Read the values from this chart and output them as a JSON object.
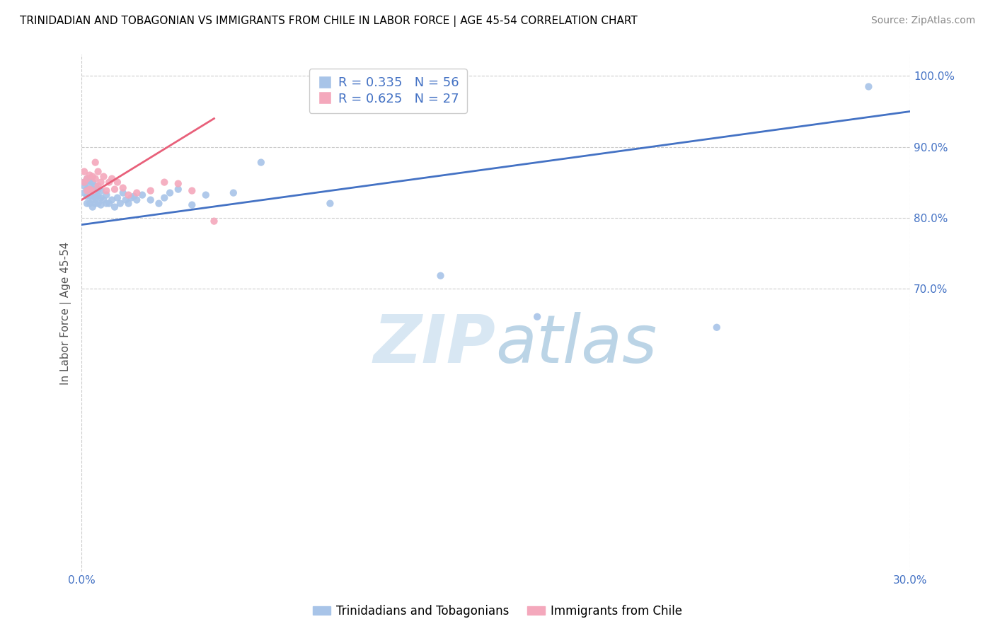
{
  "title": "TRINIDADIAN AND TOBAGONIAN VS IMMIGRANTS FROM CHILE IN LABOR FORCE | AGE 45-54 CORRELATION CHART",
  "source": "Source: ZipAtlas.com",
  "ylabel": "In Labor Force | Age 45-54",
  "xlim": [
    0.0,
    0.3
  ],
  "ylim": [
    0.3,
    1.03
  ],
  "xticks": [
    0.0,
    0.3
  ],
  "xtick_labels": [
    "0.0%",
    "30.0%"
  ],
  "ytick_positions": [
    0.7,
    0.8,
    0.9,
    1.0
  ],
  "ytick_labels": [
    "70.0%",
    "80.0%",
    "90.0%",
    "100.0%"
  ],
  "blue_R": 0.335,
  "blue_N": 56,
  "pink_R": 0.625,
  "pink_N": 27,
  "blue_color": "#a8c4e8",
  "pink_color": "#f4a8bc",
  "blue_line_color": "#4472c4",
  "pink_line_color": "#e8607a",
  "legend_label_blue": "Trinidadians and Tobagonians",
  "legend_label_pink": "Immigrants from Chile",
  "blue_x": [
    0.001,
    0.001,
    0.001,
    0.002,
    0.002,
    0.002,
    0.002,
    0.003,
    0.003,
    0.003,
    0.003,
    0.003,
    0.004,
    0.004,
    0.004,
    0.004,
    0.004,
    0.005,
    0.005,
    0.005,
    0.005,
    0.006,
    0.006,
    0.006,
    0.007,
    0.007,
    0.007,
    0.008,
    0.009,
    0.009,
    0.01,
    0.011,
    0.012,
    0.013,
    0.014,
    0.015,
    0.016,
    0.017,
    0.018,
    0.019,
    0.02,
    0.022,
    0.025,
    0.028,
    0.03,
    0.032,
    0.035,
    0.04,
    0.045,
    0.055,
    0.065,
    0.09,
    0.13,
    0.165,
    0.23,
    0.285
  ],
  "blue_y": [
    0.835,
    0.845,
    0.85,
    0.82,
    0.83,
    0.84,
    0.855,
    0.82,
    0.83,
    0.838,
    0.845,
    0.852,
    0.815,
    0.825,
    0.832,
    0.84,
    0.85,
    0.82,
    0.828,
    0.835,
    0.845,
    0.82,
    0.83,
    0.84,
    0.818,
    0.828,
    0.838,
    0.825,
    0.82,
    0.832,
    0.82,
    0.825,
    0.815,
    0.828,
    0.82,
    0.835,
    0.825,
    0.82,
    0.828,
    0.83,
    0.825,
    0.832,
    0.825,
    0.82,
    0.828,
    0.835,
    0.84,
    0.818,
    0.832,
    0.835,
    0.878,
    0.82,
    0.718,
    0.66,
    0.645,
    0.985
  ],
  "pink_x": [
    0.001,
    0.001,
    0.002,
    0.002,
    0.003,
    0.003,
    0.004,
    0.004,
    0.005,
    0.005,
    0.006,
    0.006,
    0.007,
    0.008,
    0.009,
    0.01,
    0.011,
    0.012,
    0.013,
    0.015,
    0.017,
    0.02,
    0.025,
    0.03,
    0.035,
    0.04,
    0.048
  ],
  "pink_y": [
    0.85,
    0.865,
    0.838,
    0.855,
    0.84,
    0.86,
    0.838,
    0.858,
    0.855,
    0.878,
    0.845,
    0.865,
    0.85,
    0.858,
    0.838,
    0.85,
    0.855,
    0.84,
    0.85,
    0.842,
    0.832,
    0.835,
    0.838,
    0.85,
    0.848,
    0.838,
    0.795
  ],
  "blue_line_x0": 0.0,
  "blue_line_y0": 0.79,
  "blue_line_x1": 0.3,
  "blue_line_y1": 0.95,
  "pink_line_x0": 0.0,
  "pink_line_y0": 0.825,
  "pink_line_x1": 0.048,
  "pink_line_y1": 0.94
}
